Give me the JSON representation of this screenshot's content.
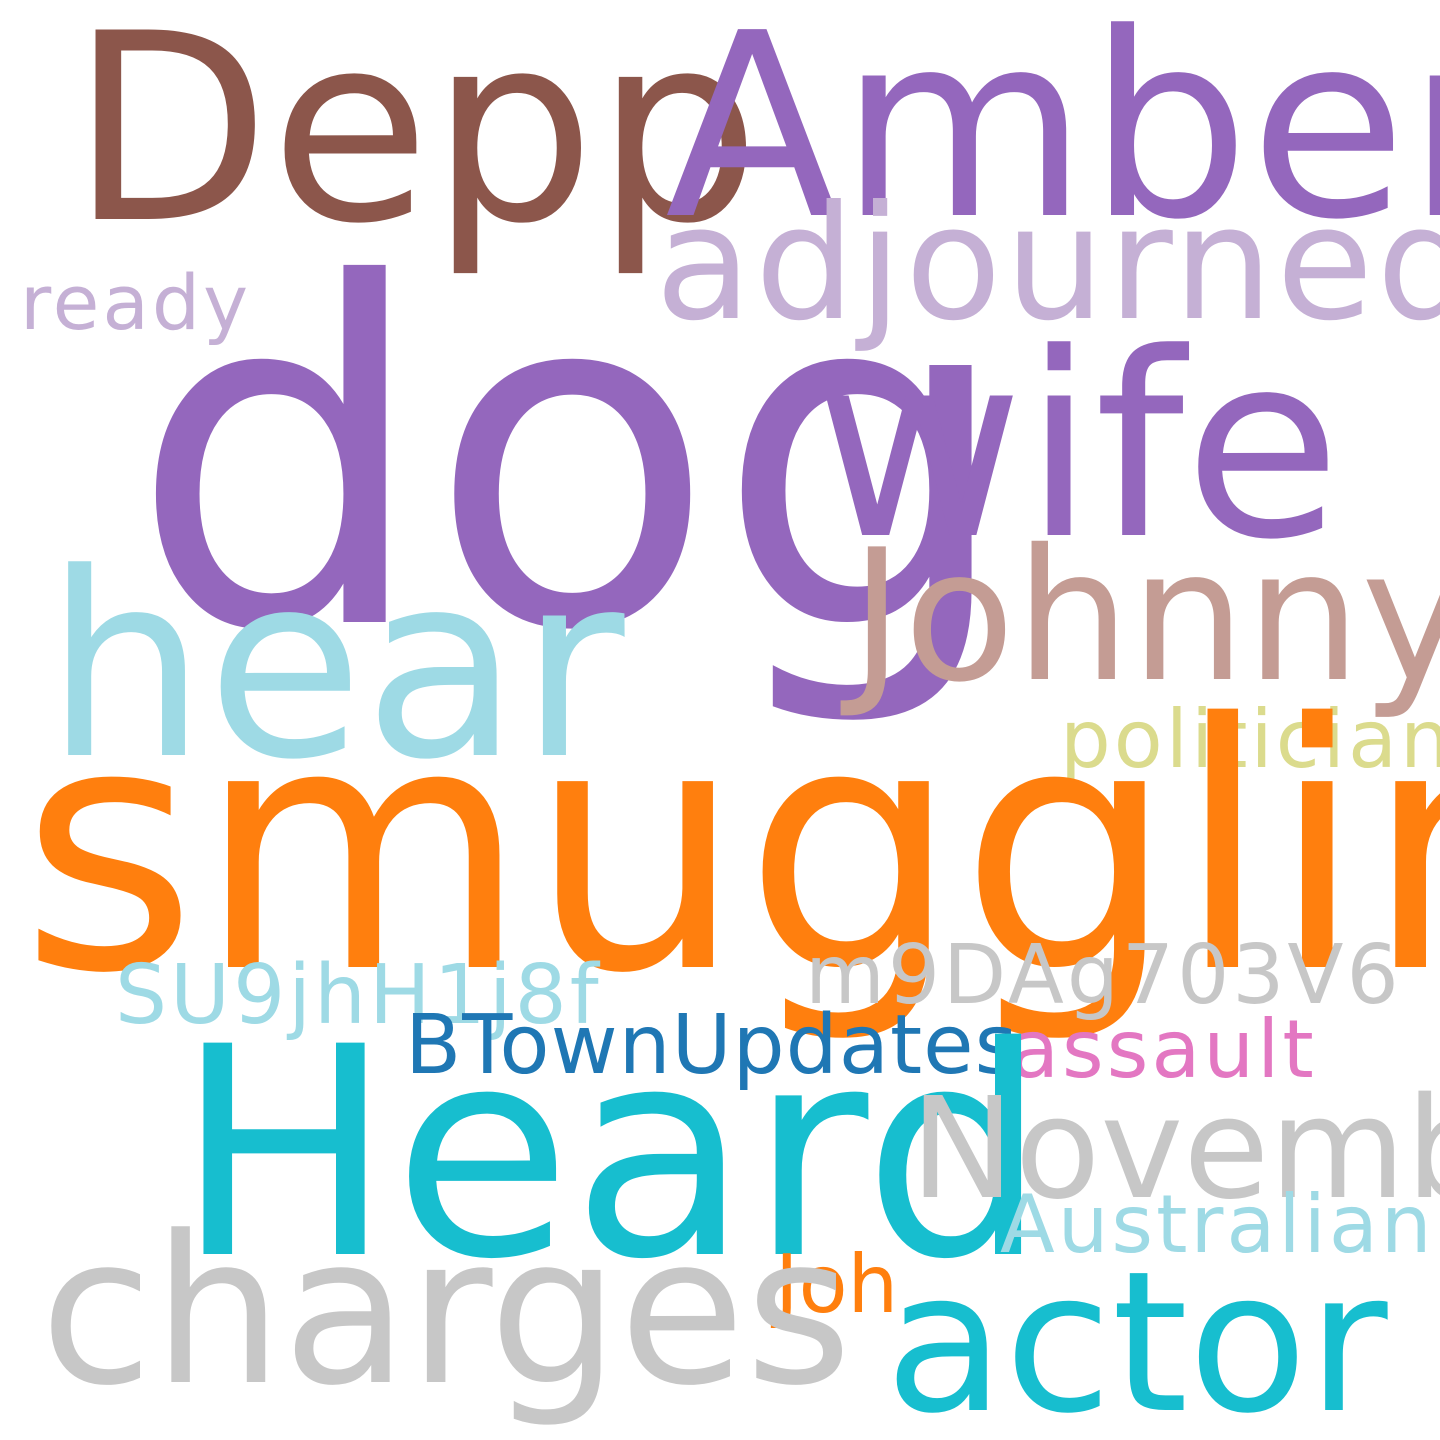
{
  "cloud": {
    "words": {
      "depp": {
        "text": "Depp",
        "color": "#8c564b"
      },
      "amber": {
        "text": "Amber",
        "color": "#9467bd"
      },
      "adjourned": {
        "text": "adjourned",
        "color": "#c5b0d5"
      },
      "ready": {
        "text": "ready",
        "color": "#c5b0d5"
      },
      "dog": {
        "text": "dog",
        "color": "#9467bd"
      },
      "wife": {
        "text": "wife",
        "color": "#9467bd"
      },
      "johnny": {
        "text": "Johnny",
        "color": "#c49c94"
      },
      "hear": {
        "text": "hear",
        "color": "#9edae5"
      },
      "politician": {
        "text": "politician",
        "color": "#dbdb8d"
      },
      "smuggling": {
        "text": "smuggling",
        "color": "#ff7f0e"
      },
      "m9DAg703V6": {
        "text": "m9DAg703V6",
        "color": "#c7c7c7"
      },
      "SU9jhH1j8f": {
        "text": "SU9jhH1j8f",
        "color": "#9edae5"
      },
      "btownupdates": {
        "text": "BTownUpdates",
        "color": "#1f77b4"
      },
      "assault": {
        "text": "assault",
        "color": "#e377c2"
      },
      "heard": {
        "text": "Heard",
        "color": "#17becf"
      },
      "november": {
        "text": "November",
        "color": "#c7c7c7"
      },
      "australian": {
        "text": "Australian",
        "color": "#9edae5"
      },
      "joh": {
        "text": "Joh",
        "color": "#ff7f0e"
      },
      "charges": {
        "text": "charges",
        "color": "#c7c7c7"
      },
      "actor": {
        "text": "actor",
        "color": "#17becf"
      }
    }
  }
}
